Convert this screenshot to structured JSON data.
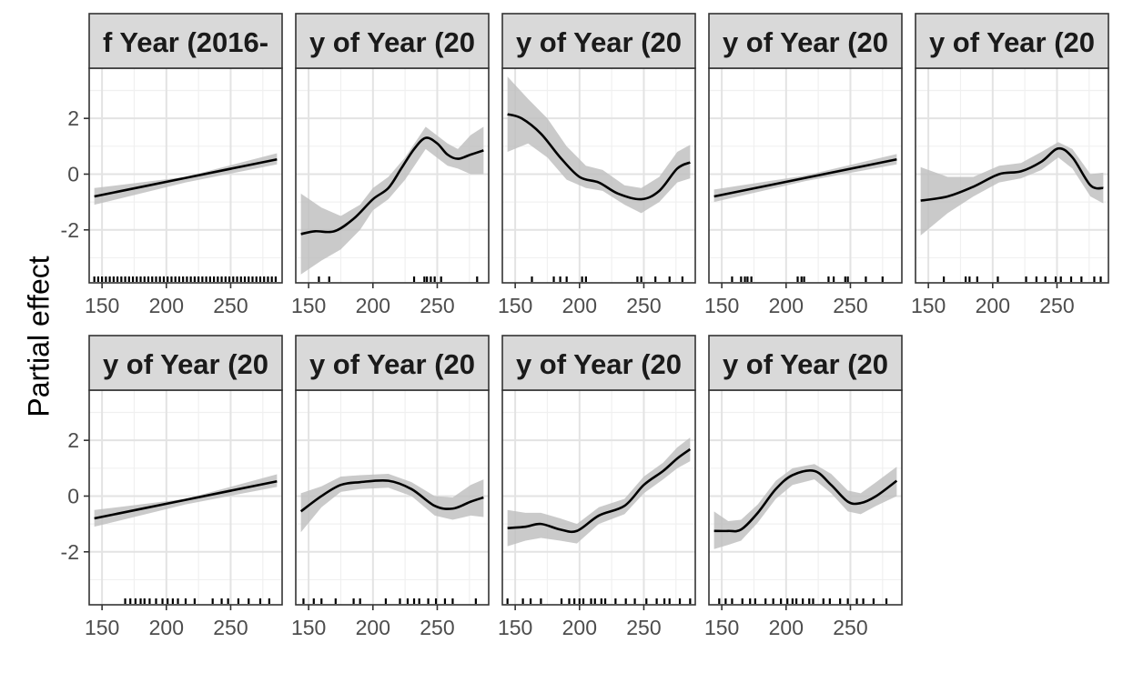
{
  "chart_data": {
    "type": "line",
    "ylabel": "Partial effect",
    "xlim": [
      140,
      290
    ],
    "ylim": [
      -3.9,
      3.8
    ],
    "x_ticks": [
      150,
      200,
      250
    ],
    "y_ticks": [
      2,
      0,
      -2
    ],
    "grid": true,
    "panels": [
      {
        "strip": "f Year (2016-",
        "curve": [
          [
            144,
            -0.8
          ],
          [
            286,
            0.53
          ]
        ],
        "band": [
          [
            144,
            -1.1,
            -0.5
          ],
          [
            215,
            -0.3,
            -0.1
          ],
          [
            286,
            0.35,
            0.75
          ]
        ],
        "rug": [
          144,
          147,
          150,
          153,
          156,
          159,
          162,
          165,
          168,
          171,
          174,
          177,
          180,
          183,
          186,
          189,
          192,
          195,
          198,
          201,
          204,
          207,
          210,
          213,
          216,
          219,
          222,
          225,
          228,
          231,
          234,
          237,
          240,
          243,
          246,
          249,
          252,
          255,
          258,
          261,
          264,
          267,
          270,
          273,
          276,
          279,
          282,
          285
        ]
      },
      {
        "strip": "y of Year (20",
        "curve": [
          [
            144,
            -2.15
          ],
          [
            155,
            -2.05
          ],
          [
            170,
            -2.05
          ],
          [
            185,
            -1.6
          ],
          [
            200,
            -0.9
          ],
          [
            212,
            -0.5
          ],
          [
            222,
            0.2
          ],
          [
            232,
            0.9
          ],
          [
            241,
            1.3
          ],
          [
            250,
            1.1
          ],
          [
            258,
            0.7
          ],
          [
            266,
            0.55
          ],
          [
            276,
            0.7
          ],
          [
            286,
            0.85
          ]
        ],
        "band": [
          [
            144,
            -3.6,
            -0.7
          ],
          [
            160,
            -3.1,
            -1.2
          ],
          [
            175,
            -2.7,
            -1.5
          ],
          [
            190,
            -2.0,
            -1.1
          ],
          [
            200,
            -1.3,
            -0.5
          ],
          [
            212,
            -0.9,
            -0.1
          ],
          [
            225,
            -0.2,
            0.6
          ],
          [
            241,
            0.9,
            1.7
          ],
          [
            258,
            0.3,
            1.1
          ],
          [
            266,
            0.2,
            0.9
          ],
          [
            276,
            0.0,
            1.4
          ],
          [
            286,
            0.0,
            1.7
          ]
        ],
        "rug": [
          158,
          166,
          232,
          240,
          242,
          245,
          248,
          253,
          281
        ]
      },
      {
        "strip": "y of Year (20",
        "curve": [
          [
            144,
            2.15
          ],
          [
            155,
            2.0
          ],
          [
            170,
            1.45
          ],
          [
            185,
            0.6
          ],
          [
            200,
            -0.1
          ],
          [
            215,
            -0.3
          ],
          [
            230,
            -0.7
          ],
          [
            248,
            -0.9
          ],
          [
            262,
            -0.6
          ],
          [
            276,
            0.2
          ],
          [
            286,
            0.42
          ]
        ],
        "band": [
          [
            144,
            0.8,
            3.5
          ],
          [
            160,
            1.1,
            2.7
          ],
          [
            175,
            0.6,
            2.0
          ],
          [
            190,
            -0.2,
            1.0
          ],
          [
            205,
            -0.5,
            0.3
          ],
          [
            218,
            -0.6,
            0.15
          ],
          [
            235,
            -1.1,
            -0.4
          ],
          [
            248,
            -1.4,
            -0.5
          ],
          [
            262,
            -1.0,
            -0.1
          ],
          [
            276,
            -0.3,
            0.8
          ],
          [
            286,
            -0.15,
            1.05
          ]
        ],
        "rug": [
          163,
          180,
          185,
          190,
          202,
          205,
          245,
          248,
          259,
          270,
          280
        ]
      },
      {
        "strip": "y of Year (20",
        "curve": [
          [
            144,
            -0.8
          ],
          [
            286,
            0.53
          ]
        ],
        "band": [
          [
            144,
            -1.0,
            -0.55
          ],
          [
            215,
            -0.25,
            -0.05
          ],
          [
            286,
            0.35,
            0.72
          ]
        ],
        "rug": [
          158,
          165,
          168,
          170,
          173,
          209,
          212,
          214,
          233,
          237,
          246,
          248,
          262,
          275
        ]
      },
      {
        "strip": "y of Year (20",
        "curve": [
          [
            144,
            -0.95
          ],
          [
            165,
            -0.8
          ],
          [
            185,
            -0.45
          ],
          [
            205,
            0.0
          ],
          [
            222,
            0.1
          ],
          [
            238,
            0.45
          ],
          [
            251,
            0.92
          ],
          [
            262,
            0.6
          ],
          [
            276,
            -0.4
          ],
          [
            286,
            -0.5
          ]
        ],
        "band": [
          [
            144,
            -2.2,
            0.25
          ],
          [
            165,
            -1.4,
            -0.1
          ],
          [
            185,
            -0.8,
            -0.1
          ],
          [
            205,
            -0.3,
            0.3
          ],
          [
            222,
            -0.15,
            0.4
          ],
          [
            238,
            0.15,
            0.8
          ],
          [
            251,
            0.6,
            1.15
          ],
          [
            262,
            0.2,
            0.9
          ],
          [
            276,
            -0.8,
            0.0
          ],
          [
            286,
            -1.05,
            0.05
          ]
        ],
        "rug": [
          162,
          179,
          182,
          188,
          204,
          226,
          234,
          241,
          249,
          253,
          261,
          269,
          279,
          284
        ]
      },
      {
        "strip": "y of Year (20",
        "curve": [
          [
            144,
            -0.8
          ],
          [
            286,
            0.53
          ]
        ],
        "band": [
          [
            144,
            -1.1,
            -0.5
          ],
          [
            215,
            -0.3,
            -0.1
          ],
          [
            286,
            0.33,
            0.78
          ]
        ],
        "rug": [
          168,
          172,
          176,
          180,
          183,
          187,
          192,
          197,
          201,
          205,
          209,
          215,
          222,
          236,
          243,
          248,
          256,
          264,
          273,
          280
        ]
      },
      {
        "strip": "y of Year (20",
        "curve": [
          [
            144,
            -0.55
          ],
          [
            160,
            0.0
          ],
          [
            175,
            0.4
          ],
          [
            190,
            0.5
          ],
          [
            212,
            0.55
          ],
          [
            230,
            0.25
          ],
          [
            248,
            -0.35
          ],
          [
            262,
            -0.45
          ],
          [
            276,
            -0.2
          ],
          [
            286,
            -0.05
          ]
        ],
        "band": [
          [
            144,
            -1.3,
            0.1
          ],
          [
            160,
            -0.4,
            0.35
          ],
          [
            175,
            0.15,
            0.7
          ],
          [
            190,
            0.25,
            0.75
          ],
          [
            212,
            0.3,
            0.8
          ],
          [
            230,
            0.0,
            0.5
          ],
          [
            248,
            -0.7,
            0.0
          ],
          [
            262,
            -0.85,
            -0.05
          ],
          [
            276,
            -0.7,
            0.4
          ],
          [
            286,
            -0.75,
            0.6
          ]
        ],
        "rug": [
          146,
          154,
          160,
          171,
          185,
          190,
          210,
          221,
          227,
          232,
          236,
          243,
          249,
          256,
          262,
          280
        ]
      },
      {
        "strip": "y of Year (20",
        "curve": [
          [
            144,
            -1.15
          ],
          [
            158,
            -1.1
          ],
          [
            170,
            -1.0
          ],
          [
            185,
            -1.2
          ],
          [
            198,
            -1.25
          ],
          [
            215,
            -0.7
          ],
          [
            235,
            -0.35
          ],
          [
            250,
            0.4
          ],
          [
            265,
            0.9
          ],
          [
            276,
            1.35
          ],
          [
            286,
            1.68
          ]
        ],
        "band": [
          [
            144,
            -1.8,
            -0.5
          ],
          [
            158,
            -1.6,
            -0.6
          ],
          [
            170,
            -1.5,
            -0.6
          ],
          [
            185,
            -1.6,
            -0.8
          ],
          [
            198,
            -1.7,
            -1.0
          ],
          [
            215,
            -1.0,
            -0.4
          ],
          [
            235,
            -0.65,
            -0.1
          ],
          [
            250,
            0.1,
            0.7
          ],
          [
            265,
            0.6,
            1.2
          ],
          [
            276,
            1.0,
            1.75
          ],
          [
            286,
            1.25,
            2.1
          ]
        ],
        "rug": [
          144,
          156,
          162,
          170,
          186,
          192,
          196,
          200,
          203,
          209,
          212,
          217,
          220,
          228,
          236,
          243,
          252,
          260,
          266,
          270,
          278,
          286
        ]
      },
      {
        "strip": "y of Year (20",
        "curve": [
          [
            144,
            -1.25
          ],
          [
            155,
            -1.25
          ],
          [
            165,
            -1.2
          ],
          [
            178,
            -0.6
          ],
          [
            192,
            0.25
          ],
          [
            205,
            0.75
          ],
          [
            222,
            0.9
          ],
          [
            235,
            0.4
          ],
          [
            248,
            -0.2
          ],
          [
            258,
            -0.25
          ],
          [
            270,
            0.0
          ],
          [
            286,
            0.55
          ]
        ],
        "band": [
          [
            144,
            -1.9,
            -0.55
          ],
          [
            155,
            -1.75,
            -0.9
          ],
          [
            165,
            -1.6,
            -0.85
          ],
          [
            178,
            -0.95,
            -0.3
          ],
          [
            192,
            -0.1,
            0.55
          ],
          [
            205,
            0.4,
            1.0
          ],
          [
            222,
            0.6,
            1.15
          ],
          [
            235,
            0.1,
            0.8
          ],
          [
            248,
            -0.55,
            0.2
          ],
          [
            258,
            -0.65,
            0.1
          ],
          [
            270,
            -0.35,
            0.5
          ],
          [
            286,
            0.0,
            1.05
          ]
        ],
        "rug": [
          148,
          153,
          158,
          166,
          172,
          176,
          184,
          190,
          196,
          201,
          205,
          208,
          213,
          218,
          221,
          229,
          234,
          242,
          248,
          255,
          260,
          268,
          278
        ]
      }
    ]
  }
}
